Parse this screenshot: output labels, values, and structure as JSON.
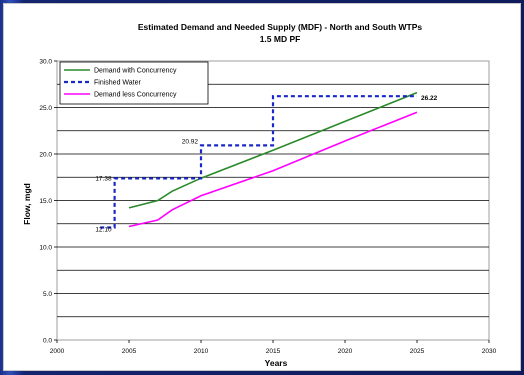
{
  "chart_data": {
    "type": "line",
    "title": "Estimated Demand and Needed Supply (MDF) - North and South WTPs",
    "subtitle": "1.5 MD PF",
    "xlabel": "Years",
    "ylabel": "Flow, mgd",
    "xlim": [
      2000,
      2030
    ],
    "ylim": [
      0,
      30
    ],
    "x_ticks": [
      "2000",
      "2005",
      "2010",
      "2015",
      "2020",
      "2025",
      "2030"
    ],
    "y_ticks": [
      "0.0",
      "5.0",
      "10.0",
      "15.0",
      "20.0",
      "25.0",
      "30.0"
    ],
    "grid": true,
    "legend_position": "top-left",
    "series": [
      {
        "name": "Demand with Concurrency",
        "color": "#2a8a2a",
        "style": "solid",
        "x": [
          2005,
          2007,
          2008,
          2010,
          2015,
          2020,
          2025
        ],
        "y": [
          14.2,
          15.0,
          16.0,
          17.4,
          20.4,
          23.5,
          26.6
        ]
      },
      {
        "name": "Finished Water",
        "color": "#1a28c8",
        "style": "dashed",
        "x": [
          2003,
          2004,
          2004,
          2010,
          2010,
          2015,
          2015,
          2025
        ],
        "y": [
          12.1,
          12.1,
          17.38,
          17.38,
          20.92,
          20.92,
          26.22,
          26.22
        ]
      },
      {
        "name": "Demand less Concurrency",
        "color": "#ff00ff",
        "style": "solid",
        "x": [
          2005,
          2007,
          2008,
          2010,
          2015,
          2020,
          2025
        ],
        "y": [
          12.2,
          12.9,
          14.0,
          15.5,
          18.2,
          21.4,
          24.5
        ]
      }
    ],
    "annotations": [
      {
        "text": "12.10",
        "x": 2004,
        "y": 12.1,
        "anchor": "end",
        "dy": 4
      },
      {
        "text": "17.38",
        "x": 2004,
        "y": 17.38,
        "anchor": "end",
        "dy": 2
      },
      {
        "text": "20.92",
        "x": 2010,
        "y": 20.92,
        "anchor": "end",
        "dy": -2
      },
      {
        "text": "26.22",
        "x": 2025,
        "y": 26.22,
        "anchor": "start",
        "dy": 4,
        "bold": true
      }
    ]
  }
}
